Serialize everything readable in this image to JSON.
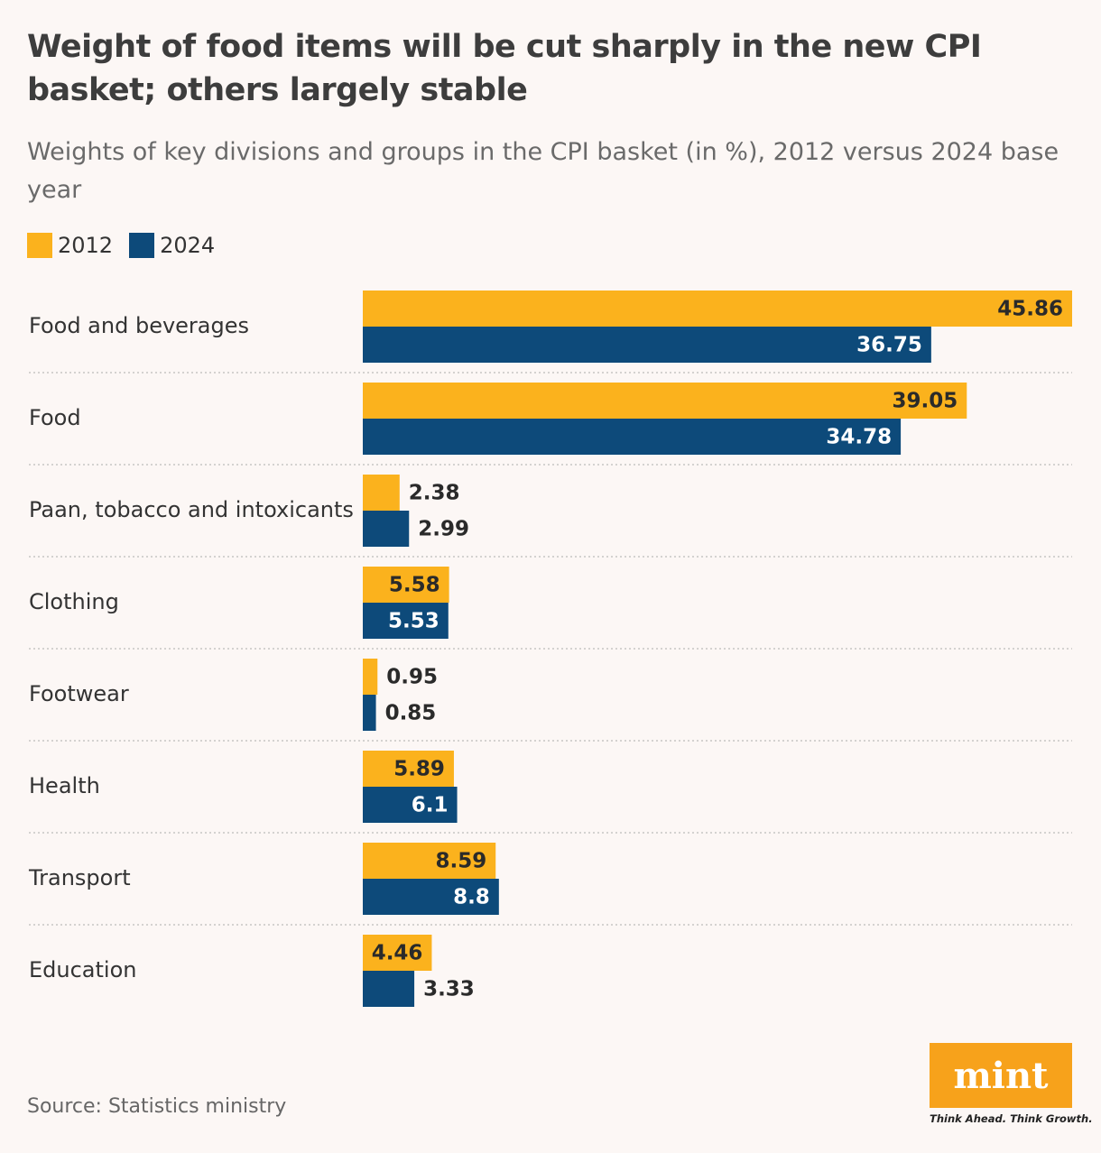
{
  "chart_data": {
    "type": "bar",
    "orientation": "horizontal",
    "title": "Weight of food items will be cut sharply in the new CPI basket; others largely stable",
    "subtitle": "Weights of key divisions and groups in the CPI basket (in %), 2012 versus 2024 base year",
    "categories": [
      "Food and beverages",
      "Food",
      "Paan, tobacco and intoxicants",
      "Clothing",
      "Footwear",
      "Health",
      "Transport",
      "Education"
    ],
    "series": [
      {
        "name": "2012",
        "color": "#fbb21d",
        "values": [
          45.86,
          39.05,
          2.38,
          5.58,
          0.95,
          5.89,
          8.59,
          4.46
        ]
      },
      {
        "name": "2024",
        "color": "#0d4a7a",
        "values": [
          36.75,
          34.78,
          2.99,
          5.53,
          0.85,
          6.1,
          8.8,
          3.33
        ]
      }
    ],
    "source": "Source: Statistics ministry"
  },
  "branding": {
    "logo": "mint",
    "tagline": "Think Ahead. Think Growth."
  }
}
